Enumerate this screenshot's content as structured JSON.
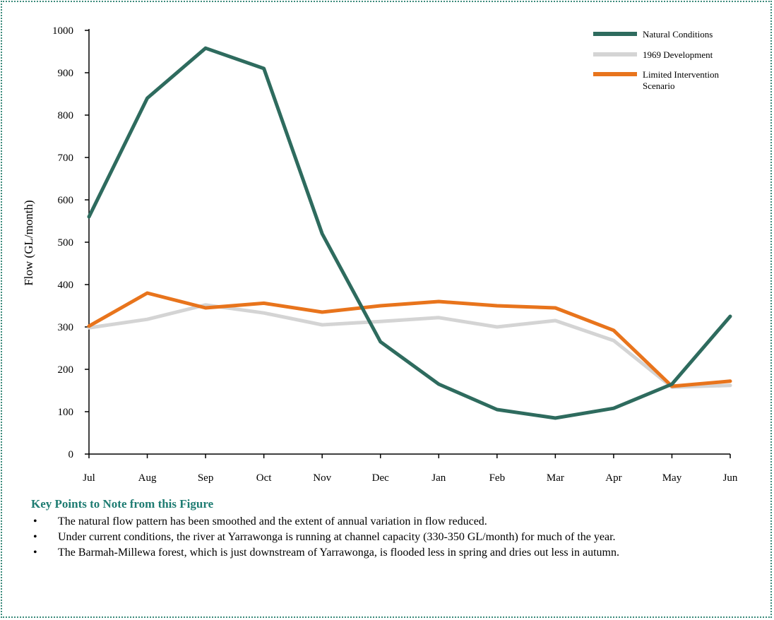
{
  "chart_data": {
    "type": "line",
    "title": "",
    "xlabel": "",
    "ylabel": "Flow (GL/month)",
    "ylim": [
      0,
      1000
    ],
    "yticks": [
      "0",
      "100",
      "200",
      "300",
      "400",
      "500",
      "600",
      "700",
      "800",
      "900",
      "1000"
    ],
    "categories": [
      "Jul",
      "Aug",
      "Sep",
      "Oct",
      "Nov",
      "Dec",
      "Jan",
      "Feb",
      "Mar",
      "Apr",
      "May",
      "Jun"
    ],
    "legend_position": "top-right",
    "grid": false,
    "series": [
      {
        "name": "Natural Conditions",
        "color": "#2e6b5e",
        "values": [
          560,
          840,
          958,
          910,
          520,
          265,
          165,
          105,
          85,
          108,
          165,
          325
        ]
      },
      {
        "name": "1969 Development",
        "color": "#d4d4d4",
        "values": [
          298,
          318,
          352,
          333,
          305,
          313,
          322,
          300,
          315,
          268,
          158,
          162
        ]
      },
      {
        "name": "Limited Intervention Scenario",
        "color": "#e8741c",
        "values": [
          302,
          380,
          345,
          356,
          335,
          350,
          360,
          350,
          345,
          292,
          160,
          172
        ]
      }
    ]
  },
  "notes": {
    "title": "Key Points to Note from this Figure",
    "bullet": "•",
    "items": [
      "The natural flow pattern has been smoothed and the extent of annual variation in flow reduced.",
      "Under current conditions, the river at Yarrawonga is running at channel capacity (330-350 GL/month) for much of the year.",
      "The Barmah-Millewa forest, which is just downstream of Yarrawonga, is flooded less in spring and dries out less in autumn."
    ]
  }
}
